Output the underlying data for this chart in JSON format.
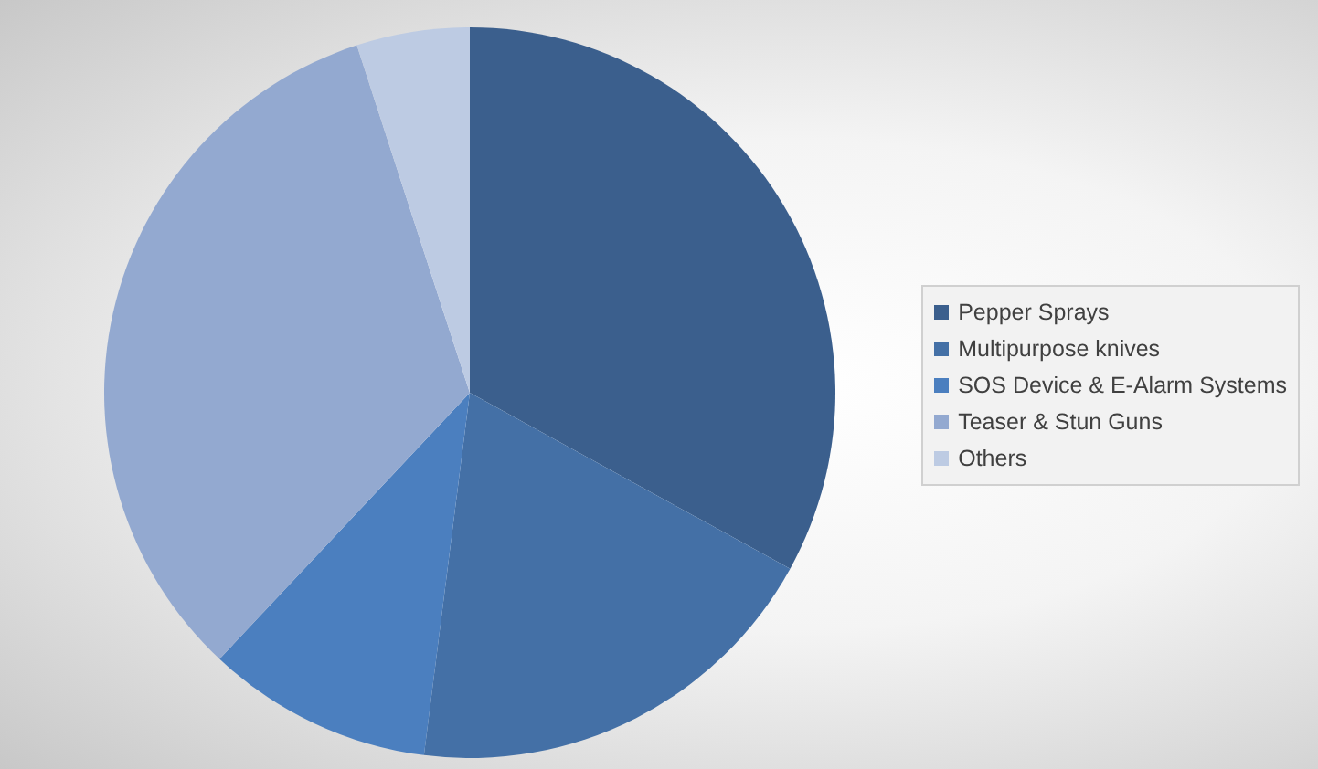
{
  "chart_data": {
    "type": "pie",
    "categories": [
      "Pepper Sprays",
      "Multipurpose knives",
      "SOS Device & E-Alarm Systems",
      "Teaser & Stun Guns",
      "Others"
    ],
    "values": [
      33,
      19,
      10,
      33,
      5
    ],
    "colors": [
      "#3b5f8d",
      "#4470a6",
      "#4b7fbf",
      "#93a9d0",
      "#bdcbe3"
    ],
    "legend": "right"
  }
}
